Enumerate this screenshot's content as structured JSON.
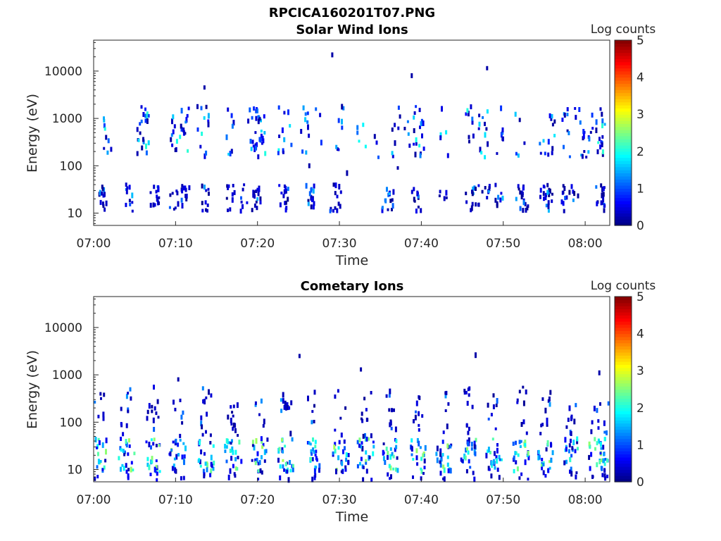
{
  "figure": {
    "title": "RPCICA160201T07.PNG"
  },
  "chart_data": [
    {
      "type": "heatmap",
      "title": "Solar Wind Ions",
      "xlabel": "Time",
      "ylabel": "Energy (eV)",
      "x_ticks": [
        "07:00",
        "07:10",
        "07:20",
        "07:30",
        "07:40",
        "07:50",
        "08:00"
      ],
      "y_ticks": [
        "10",
        "100",
        "1000",
        "10000"
      ],
      "y_scale": "log",
      "x_range": [
        "07:00",
        "08:03"
      ],
      "y_range": [
        5.5,
        45000
      ],
      "colorbar": {
        "label": "Log counts",
        "ticks": [
          "0",
          "1",
          "2",
          "3",
          "4",
          "5"
        ],
        "range": [
          0,
          5
        ],
        "colormap": "jet"
      },
      "low_energy_columns_minutes": [
        0.7,
        1.2,
        4.2,
        7.3,
        7.6,
        9.6,
        10.2,
        11.1,
        13.5,
        16.6,
        18.3,
        19.7,
        20.1,
        23.0,
        23.5,
        26.3,
        26.6,
        29.2,
        29.7,
        35.6,
        36.4,
        39.1,
        39.5,
        42.6,
        45.8,
        46.5,
        47.8,
        49.4,
        51.9,
        52.4,
        54.9,
        55.4,
        57.5,
        58.7,
        61.7,
        62.3
      ],
      "mid_energy_columns_minutes": [
        1.5,
        5.8,
        6.2,
        9.6,
        10.2,
        11.1,
        12.5,
        13.5,
        16.6,
        19.3,
        19.8,
        20.1,
        20.5,
        23.0,
        23.5,
        25.6,
        27.3,
        29.8,
        32.5,
        34.6,
        36.7,
        38.4,
        39.2,
        39.6,
        42.6,
        45.8,
        46.5,
        47.8,
        49.7,
        51.9,
        54.9,
        55.8,
        57.5,
        59.2,
        60.5,
        61.5,
        62.3
      ],
      "isolated_high_energy_points": [
        {
          "minute": 13.4,
          "energy": 4500
        },
        {
          "minute": 29.0,
          "energy": 22000
        },
        {
          "minute": 38.7,
          "energy": 8000
        },
        {
          "minute": 47.9,
          "energy": 11500
        },
        {
          "minute": 30.8,
          "energy": 70
        },
        {
          "minute": 26.2,
          "energy": 100
        },
        {
          "minute": 37.0,
          "energy": 90
        }
      ]
    },
    {
      "type": "heatmap",
      "title": "Cometary Ions",
      "xlabel": "Time",
      "ylabel": "Energy (eV)",
      "x_ticks": [
        "07:00",
        "07:10",
        "07:20",
        "07:30",
        "07:40",
        "07:50",
        "08:00"
      ],
      "y_ticks": [
        "10",
        "100",
        "1000",
        "10000"
      ],
      "y_scale": "log",
      "x_range": [
        "07:00",
        "08:03"
      ],
      "y_range": [
        5.5,
        45000
      ],
      "colorbar": {
        "label": "Log counts",
        "ticks": [
          "0",
          "1",
          "2",
          "3",
          "4",
          "5"
        ],
        "range": [
          0,
          5
        ],
        "colormap": "jet"
      },
      "burst_columns_minutes": [
        0.5,
        3.9,
        7.1,
        10.1,
        13.6,
        16.9,
        20.1,
        23.4,
        26.7,
        30.0,
        33.1,
        36.1,
        39.5,
        42.6,
        45.6,
        48.7,
        52.1,
        55.1,
        58.3,
        61.3,
        62.7
      ],
      "isolated_high_energy_points": [
        {
          "minute": 25.0,
          "energy": 2500
        },
        {
          "minute": 46.5,
          "energy": 2600
        },
        {
          "minute": 10.2,
          "energy": 800
        },
        {
          "minute": 32.5,
          "energy": 1300
        },
        {
          "minute": 61.6,
          "energy": 1100
        }
      ]
    }
  ]
}
